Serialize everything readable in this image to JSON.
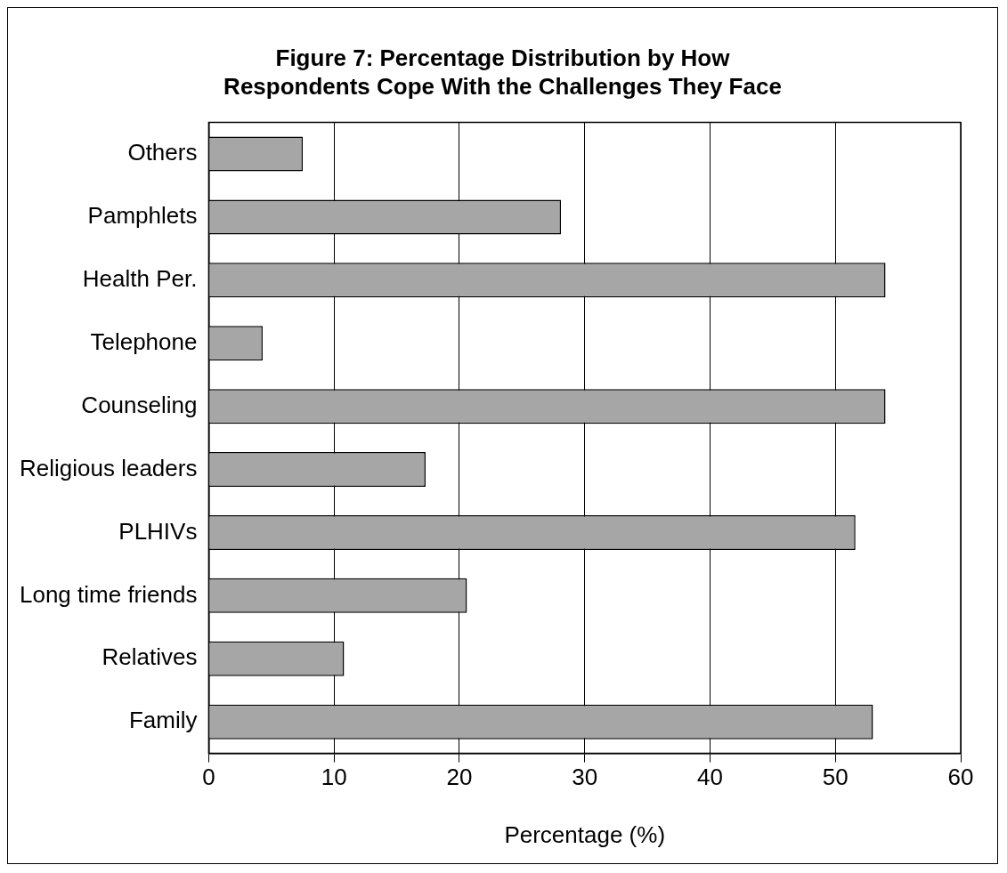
{
  "chart_data": {
    "type": "bar",
    "orientation": "horizontal",
    "title": "Figure 7: Percentage Distribution by How Respondents Cope With the Challenges They Face",
    "xlabel": "Percentage (%)",
    "categories": [
      "Others",
      "Pamphlets",
      "Health Per.",
      "Telephone",
      "Counseling",
      "Religious leaders",
      "PLHIVs",
      "Long time friends",
      "Relatives",
      "Family"
    ],
    "values": [
      7.5,
      28.1,
      54.0,
      4.3,
      54.0,
      17.3,
      51.6,
      20.6,
      10.8,
      53.0
    ],
    "color": "#a6a6a6",
    "xlim": [
      0,
      60
    ],
    "xticks": [
      0,
      10,
      20,
      30,
      40,
      50,
      60
    ],
    "grid": "x",
    "legend": false
  }
}
